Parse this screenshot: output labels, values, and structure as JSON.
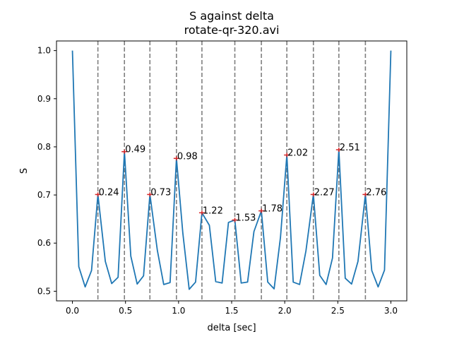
{
  "chart_data": {
    "type": "line",
    "title": "S against delta",
    "subtitle": "rotate-qr-320.avi",
    "xlabel": "delta [sec]",
    "ylabel": "S",
    "xlim": [
      -0.15,
      3.15
    ],
    "ylim": [
      0.48,
      1.02
    ],
    "xticks": [
      0.0,
      0.5,
      1.0,
      1.5,
      2.0,
      2.5,
      3.0
    ],
    "xtick_labels": [
      "0.0",
      "0.5",
      "1.0",
      "1.5",
      "2.0",
      "2.5",
      "3.0"
    ],
    "yticks": [
      0.5,
      0.6,
      0.7,
      0.8,
      0.9,
      1.0
    ],
    "ytick_labels": [
      "0.5",
      "0.6",
      "0.7",
      "0.8",
      "0.9",
      "1.0"
    ],
    "grid": false,
    "colors": {
      "line": "#1f77b4",
      "peak_marker": "#d62728",
      "vline": "#7f7f7f"
    },
    "series": [
      {
        "x": [
          0.0,
          0.06,
          0.12,
          0.18,
          0.24,
          0.31,
          0.37,
          0.43,
          0.49,
          0.55,
          0.61,
          0.67,
          0.73,
          0.8,
          0.86,
          0.92,
          0.98,
          1.04,
          1.1,
          1.16,
          1.22,
          1.29,
          1.35,
          1.41,
          1.47,
          1.53,
          1.59,
          1.65,
          1.71,
          1.78,
          1.84,
          1.9,
          1.96,
          2.02,
          2.08,
          2.14,
          2.2,
          2.27,
          2.33,
          2.39,
          2.45,
          2.51,
          2.57,
          2.63,
          2.69,
          2.76,
          2.82,
          2.88,
          2.94,
          3.0
        ],
        "y": [
          1.0,
          0.551,
          0.509,
          0.543,
          0.701,
          0.562,
          0.516,
          0.529,
          0.79,
          0.573,
          0.515,
          0.532,
          0.701,
          0.585,
          0.514,
          0.518,
          0.776,
          0.621,
          0.504,
          0.519,
          0.663,
          0.637,
          0.52,
          0.517,
          0.643,
          0.648,
          0.517,
          0.519,
          0.624,
          0.667,
          0.519,
          0.505,
          0.612,
          0.783,
          0.519,
          0.514,
          0.584,
          0.701,
          0.533,
          0.514,
          0.569,
          0.794,
          0.527,
          0.515,
          0.562,
          0.701,
          0.543,
          0.509,
          0.544,
          1.0
        ]
      }
    ],
    "peaks": [
      {
        "x": 0.24,
        "y": 0.701,
        "label": "0.24"
      },
      {
        "x": 0.49,
        "y": 0.79,
        "label": "0.49"
      },
      {
        "x": 0.73,
        "y": 0.701,
        "label": "0.73"
      },
      {
        "x": 0.98,
        "y": 0.776,
        "label": "0.98"
      },
      {
        "x": 1.22,
        "y": 0.663,
        "label": "1.22"
      },
      {
        "x": 1.53,
        "y": 0.648,
        "label": "1.53"
      },
      {
        "x": 1.78,
        "y": 0.667,
        "label": "1.78"
      },
      {
        "x": 2.02,
        "y": 0.783,
        "label": "2.02"
      },
      {
        "x": 2.27,
        "y": 0.701,
        "label": "2.27"
      },
      {
        "x": 2.51,
        "y": 0.794,
        "label": "2.51"
      },
      {
        "x": 2.76,
        "y": 0.701,
        "label": "2.76"
      }
    ]
  }
}
